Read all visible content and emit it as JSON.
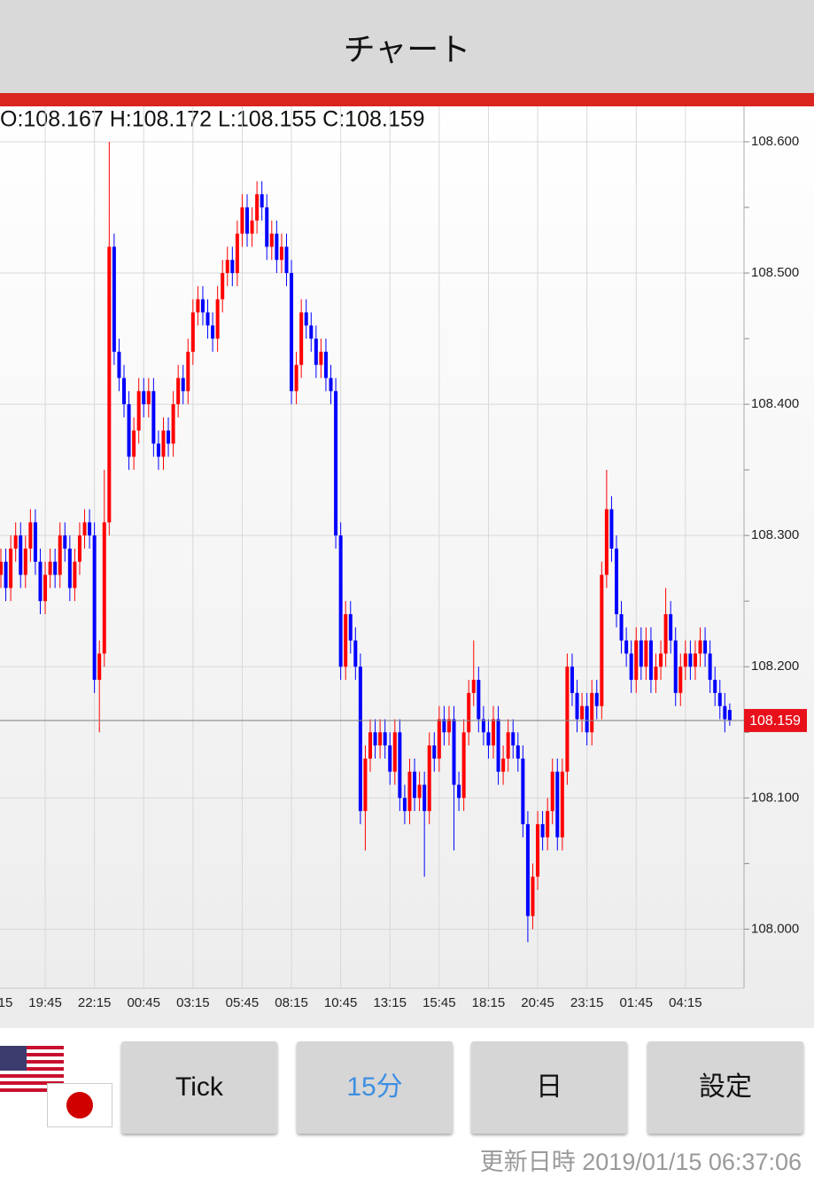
{
  "header": {
    "title": "チャート"
  },
  "chart_data": {
    "type": "candlestick",
    "ohlc_label": "O:108.167 H:108.172 L:108.155 C:108.159",
    "first_label_fragment": "15",
    "categories": [
      null,
      null,
      null,
      null,
      null,
      null,
      null,
      null,
      null,
      "19:45",
      null,
      null,
      null,
      null,
      null,
      null,
      null,
      null,
      null,
      "22:15",
      null,
      null,
      null,
      null,
      null,
      null,
      null,
      null,
      null,
      "00:45",
      null,
      null,
      null,
      null,
      null,
      null,
      null,
      null,
      null,
      "03:15",
      null,
      null,
      null,
      null,
      null,
      null,
      null,
      null,
      null,
      "05:45",
      null,
      null,
      null,
      null,
      null,
      null,
      null,
      null,
      null,
      "08:15",
      null,
      null,
      null,
      null,
      null,
      null,
      null,
      null,
      null,
      "10:45",
      null,
      null,
      null,
      null,
      null,
      null,
      null,
      null,
      null,
      "13:15",
      null,
      null,
      null,
      null,
      null,
      null,
      null,
      null,
      null,
      "15:45",
      null,
      null,
      null,
      null,
      null,
      null,
      null,
      null,
      null,
      "18:15",
      null,
      null,
      null,
      null,
      null,
      null,
      null,
      null,
      null,
      "20:45",
      null,
      null,
      null,
      null,
      null,
      null,
      null,
      null,
      null,
      "23:15",
      null,
      null,
      null,
      null,
      null,
      null,
      null,
      null,
      null,
      "01:45",
      null,
      null,
      null,
      null,
      null,
      null,
      null,
      null,
      null,
      "04:15",
      null,
      null,
      null,
      null,
      null,
      null,
      null,
      null,
      null
    ],
    "open": [
      108.27,
      108.28,
      108.26,
      108.29,
      108.3,
      108.27,
      108.29,
      108.31,
      108.28,
      108.25,
      108.27,
      108.28,
      108.27,
      108.3,
      108.29,
      108.26,
      108.28,
      108.3,
      108.31,
      108.3,
      108.19,
      108.21,
      108.31,
      108.52,
      108.44,
      108.42,
      108.4,
      108.36,
      108.38,
      108.41,
      108.4,
      108.41,
      108.37,
      108.36,
      108.38,
      108.37,
      108.4,
      108.42,
      108.41,
      108.44,
      108.47,
      108.48,
      108.47,
      108.46,
      108.45,
      108.48,
      108.5,
      108.51,
      108.5,
      108.53,
      108.55,
      108.53,
      108.54,
      108.56,
      108.55,
      108.52,
      108.53,
      108.51,
      108.52,
      108.5,
      108.41,
      108.43,
      108.47,
      108.46,
      108.45,
      108.43,
      108.44,
      108.42,
      108.41,
      108.3,
      108.2,
      108.24,
      108.22,
      108.2,
      108.09,
      108.13,
      108.15,
      108.14,
      108.15,
      108.14,
      108.12,
      108.15,
      108.1,
      108.09,
      108.12,
      108.1,
      108.11,
      108.09,
      108.14,
      108.13,
      108.16,
      108.15,
      108.16,
      108.11,
      108.1,
      108.15,
      108.18,
      108.19,
      108.16,
      108.15,
      108.14,
      108.16,
      108.12,
      108.13,
      108.15,
      108.14,
      108.13,
      108.08,
      108.01,
      108.04,
      108.08,
      108.07,
      108.09,
      108.12,
      108.07,
      108.12,
      108.2,
      108.18,
      108.16,
      108.17,
      108.15,
      108.18,
      108.17,
      108.27,
      108.32,
      108.29,
      108.24,
      108.22,
      108.21,
      108.19,
      108.22,
      108.2,
      108.22,
      108.19,
      108.2,
      108.21,
      108.24,
      108.22,
      108.18,
      108.2,
      108.21,
      108.2,
      108.21,
      108.22,
      108.21,
      108.19,
      108.18,
      108.17,
      108.167
    ],
    "high": [
      108.29,
      108.29,
      108.3,
      108.31,
      108.31,
      108.3,
      108.32,
      108.32,
      108.29,
      108.28,
      108.29,
      108.29,
      108.31,
      108.31,
      108.3,
      108.29,
      108.31,
      108.32,
      108.32,
      108.31,
      108.22,
      108.35,
      108.6,
      108.53,
      108.45,
      108.43,
      108.41,
      108.39,
      108.42,
      108.42,
      108.42,
      108.42,
      108.38,
      108.39,
      108.39,
      108.41,
      108.43,
      108.43,
      108.45,
      108.48,
      108.49,
      108.49,
      108.48,
      108.47,
      108.49,
      108.51,
      108.52,
      108.52,
      108.54,
      108.56,
      108.56,
      108.55,
      108.57,
      108.57,
      108.56,
      108.54,
      108.54,
      108.53,
      108.53,
      108.51,
      108.44,
      108.48,
      108.48,
      108.47,
      108.46,
      108.45,
      108.45,
      108.43,
      108.42,
      108.31,
      108.25,
      108.25,
      108.23,
      108.21,
      108.14,
      108.16,
      108.16,
      108.16,
      108.16,
      108.15,
      108.16,
      108.16,
      108.11,
      108.13,
      108.13,
      108.12,
      108.12,
      108.15,
      108.15,
      108.17,
      108.17,
      108.17,
      108.17,
      108.12,
      108.16,
      108.19,
      108.22,
      108.2,
      108.17,
      108.16,
      108.17,
      108.17,
      108.14,
      108.16,
      108.16,
      108.15,
      108.14,
      108.09,
      108.05,
      108.09,
      108.09,
      108.1,
      108.13,
      108.13,
      108.13,
      108.21,
      108.21,
      108.19,
      108.18,
      108.18,
      108.19,
      108.19,
      108.28,
      108.35,
      108.33,
      108.3,
      108.25,
      108.23,
      108.22,
      108.23,
      108.23,
      108.23,
      108.23,
      108.21,
      108.22,
      108.26,
      108.25,
      108.23,
      108.21,
      108.22,
      108.22,
      108.22,
      108.23,
      108.23,
      108.22,
      108.2,
      108.19,
      108.18,
      108.172
    ],
    "low": [
      108.26,
      108.25,
      108.25,
      108.28,
      108.26,
      108.26,
      108.28,
      108.27,
      108.24,
      108.24,
      108.26,
      108.26,
      108.26,
      108.28,
      108.25,
      108.25,
      108.27,
      108.29,
      108.29,
      108.18,
      108.15,
      108.2,
      108.3,
      108.43,
      108.41,
      108.39,
      108.35,
      108.35,
      108.37,
      108.39,
      108.39,
      108.36,
      108.35,
      108.35,
      108.36,
      108.36,
      108.39,
      108.4,
      108.4,
      108.43,
      108.46,
      108.46,
      108.45,
      108.44,
      108.44,
      108.47,
      108.49,
      108.49,
      108.49,
      108.52,
      108.52,
      108.52,
      108.53,
      108.54,
      108.51,
      108.51,
      108.5,
      108.5,
      108.49,
      108.4,
      108.4,
      108.42,
      108.45,
      108.44,
      108.42,
      108.42,
      108.41,
      108.4,
      108.29,
      108.19,
      108.19,
      108.21,
      108.19,
      108.08,
      108.06,
      108.12,
      108.13,
      108.13,
      108.13,
      108.11,
      108.11,
      108.09,
      108.08,
      108.08,
      108.09,
      108.09,
      108.04,
      108.08,
      108.12,
      108.12,
      108.14,
      108.14,
      108.06,
      108.09,
      108.09,
      108.14,
      108.17,
      108.15,
      108.14,
      108.13,
      108.13,
      108.11,
      108.11,
      108.12,
      108.13,
      108.12,
      108.07,
      107.99,
      108.0,
      108.03,
      108.06,
      108.06,
      108.08,
      108.06,
      108.06,
      108.11,
      108.17,
      108.15,
      108.15,
      108.14,
      108.14,
      108.16,
      108.16,
      108.26,
      108.28,
      108.23,
      108.21,
      108.2,
      108.18,
      108.18,
      108.19,
      108.19,
      108.18,
      108.18,
      108.19,
      108.2,
      108.21,
      108.17,
      108.17,
      108.19,
      108.19,
      108.19,
      108.2,
      108.2,
      108.18,
      108.17,
      108.16,
      108.15,
      108.155
    ],
    "close": [
      108.28,
      108.26,
      108.29,
      108.3,
      108.27,
      108.29,
      108.31,
      108.28,
      108.25,
      108.27,
      108.28,
      108.27,
      108.3,
      108.29,
      108.26,
      108.28,
      108.3,
      108.31,
      108.3,
      108.19,
      108.21,
      108.31,
      108.52,
      108.44,
      108.42,
      108.4,
      108.36,
      108.38,
      108.41,
      108.4,
      108.41,
      108.37,
      108.36,
      108.38,
      108.37,
      108.4,
      108.42,
      108.41,
      108.44,
      108.47,
      108.48,
      108.47,
      108.46,
      108.45,
      108.48,
      108.5,
      108.51,
      108.5,
      108.53,
      108.55,
      108.53,
      108.54,
      108.56,
      108.55,
      108.52,
      108.53,
      108.51,
      108.52,
      108.5,
      108.41,
      108.43,
      108.47,
      108.46,
      108.45,
      108.43,
      108.44,
      108.42,
      108.41,
      108.3,
      108.2,
      108.24,
      108.22,
      108.2,
      108.09,
      108.13,
      108.15,
      108.14,
      108.15,
      108.14,
      108.12,
      108.15,
      108.1,
      108.09,
      108.12,
      108.1,
      108.11,
      108.09,
      108.14,
      108.13,
      108.16,
      108.15,
      108.16,
      108.11,
      108.1,
      108.15,
      108.18,
      108.19,
      108.16,
      108.15,
      108.14,
      108.16,
      108.12,
      108.13,
      108.15,
      108.14,
      108.13,
      108.08,
      108.01,
      108.04,
      108.08,
      108.07,
      108.09,
      108.12,
      108.07,
      108.12,
      108.2,
      108.18,
      108.16,
      108.17,
      108.15,
      108.18,
      108.17,
      108.27,
      108.32,
      108.29,
      108.24,
      108.22,
      108.21,
      108.19,
      108.22,
      108.2,
      108.22,
      108.19,
      108.2,
      108.21,
      108.24,
      108.22,
      108.18,
      108.2,
      108.21,
      108.2,
      108.21,
      108.22,
      108.21,
      108.19,
      108.18,
      108.17,
      108.16,
      108.159
    ],
    "up_color": "#ff0000",
    "down_color": "#0000ff",
    "ylim": [
      107.955,
      108.627
    ],
    "yticks": [
      {
        "value": 108.6,
        "label": "108.600"
      },
      {
        "value": 108.5,
        "label": "108.500"
      },
      {
        "value": 108.4,
        "label": "108.400"
      },
      {
        "value": 108.3,
        "label": "108.300"
      },
      {
        "value": 108.2,
        "label": "108.200"
      },
      {
        "value": 108.1,
        "label": "108.100"
      },
      {
        "value": 108.0,
        "label": "108.000"
      }
    ],
    "minor_yticks": [
      108.55,
      108.45,
      108.35,
      108.25,
      108.15,
      108.05
    ],
    "last_price": 108.159,
    "grid": true
  },
  "buttons": [
    "Tick",
    "15分",
    "日",
    "設定"
  ],
  "selected_button": 1,
  "footer": {
    "update_time": "更新日時 2019/01/15 06:37:06"
  }
}
